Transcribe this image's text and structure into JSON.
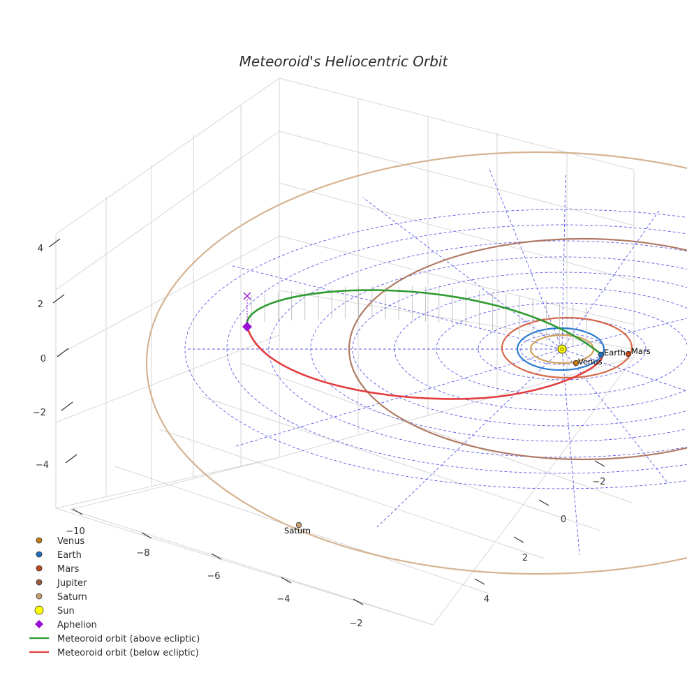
{
  "chart_data": {
    "type": "scatter3d",
    "title": "Meteoroid's Heliocentric Orbit",
    "axes": {
      "x_ticks": [
        "−10",
        "−8",
        "−6",
        "−4",
        "−2"
      ],
      "y_ticks": [
        "−2",
        "0",
        "2",
        "4"
      ],
      "z_ticks": [
        "4",
        "2",
        "0",
        "−2",
        "−4"
      ],
      "xlabel": "",
      "ylabel": "",
      "zlabel": ""
    },
    "planets": [
      {
        "name": "Venus",
        "label": "Venus",
        "color": "#c77d16"
      },
      {
        "name": "Earth",
        "label": "Earth",
        "color": "#1f6fbf"
      },
      {
        "name": "Mars",
        "label": "Mars",
        "color": "#c1461b"
      },
      {
        "name": "Jupiter",
        "label": "",
        "color": "#9b5a3c"
      },
      {
        "name": "Saturn",
        "label": "Saturn",
        "color": "#c8a074"
      }
    ],
    "orbit_colors": {
      "venus": "#d1a25a",
      "earth": "#2a7bd1",
      "mars": "#d6694a",
      "jupiter": "#b07a64",
      "saturn": "#d6b391"
    },
    "sun": {
      "name": "Sun",
      "color": "#ffff00"
    },
    "aphelion": {
      "name": "Aphelion",
      "color": "#9a0fd6"
    },
    "meteoroid": {
      "above_label": "Meteoroid orbit (above ecliptic)",
      "below_label": "Meteoroid orbit (below ecliptic)",
      "above_color": "#2e9a2e",
      "below_color": "#e23b3b"
    },
    "legend": [
      {
        "label": "Venus",
        "kind": "dot",
        "color": "#c77d16"
      },
      {
        "label": "Earth",
        "kind": "dot",
        "color": "#1f6fbf"
      },
      {
        "label": "Mars",
        "kind": "dot",
        "color": "#c1461b"
      },
      {
        "label": "Jupiter",
        "kind": "dot",
        "color": "#9b5a3c"
      },
      {
        "label": "Saturn",
        "kind": "dot",
        "color": "#c8a074"
      },
      {
        "label": "Sun",
        "kind": "sun",
        "color": "#ffff00"
      },
      {
        "label": "Aphelion",
        "kind": "diamond",
        "color": "#9a0fd6"
      },
      {
        "label": "Meteoroid orbit (above ecliptic)",
        "kind": "line",
        "color": "#2e9a2e"
      },
      {
        "label": "Meteoroid orbit (below ecliptic)",
        "kind": "line",
        "color": "#e23b3b"
      }
    ]
  }
}
